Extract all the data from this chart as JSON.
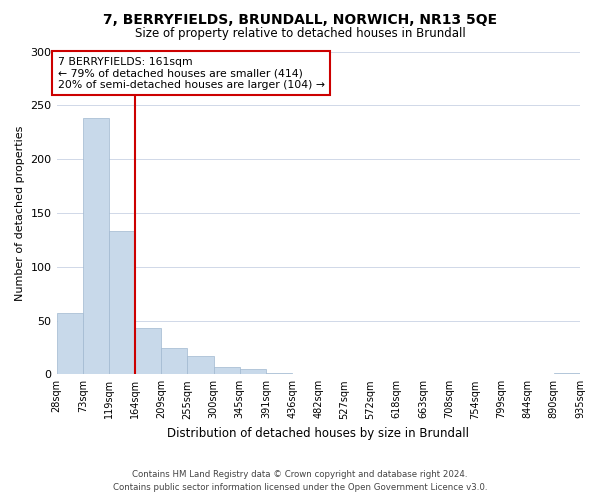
{
  "title": "7, BERRYFIELDS, BRUNDALL, NORWICH, NR13 5QE",
  "subtitle": "Size of property relative to detached houses in Brundall",
  "xlabel": "Distribution of detached houses by size in Brundall",
  "ylabel": "Number of detached properties",
  "bar_values": [
    57,
    238,
    133,
    43,
    24,
    17,
    7,
    5,
    1,
    0,
    0,
    0,
    0,
    0,
    0,
    0,
    0,
    0,
    0,
    1
  ],
  "bin_labels": [
    "28sqm",
    "73sqm",
    "119sqm",
    "164sqm",
    "209sqm",
    "255sqm",
    "300sqm",
    "345sqm",
    "391sqm",
    "436sqm",
    "482sqm",
    "527sqm",
    "572sqm",
    "618sqm",
    "663sqm",
    "708sqm",
    "754sqm",
    "799sqm",
    "844sqm",
    "890sqm",
    "935sqm"
  ],
  "bar_color": "#c8d9ea",
  "bar_edge_color": "#a0b8d0",
  "vline_x": 3,
  "vline_color": "#cc0000",
  "annotation_text": "7 BERRYFIELDS: 161sqm\n← 79% of detached houses are smaller (414)\n20% of semi-detached houses are larger (104) →",
  "annotation_box_color": "#ffffff",
  "annotation_box_edge": "#cc0000",
  "ylim": [
    0,
    300
  ],
  "yticks": [
    0,
    50,
    100,
    150,
    200,
    250,
    300
  ],
  "footer_line1": "Contains HM Land Registry data © Crown copyright and database right 2024.",
  "footer_line2": "Contains public sector information licensed under the Open Government Licence v3.0.",
  "background_color": "#ffffff",
  "grid_color": "#d0d8e8"
}
